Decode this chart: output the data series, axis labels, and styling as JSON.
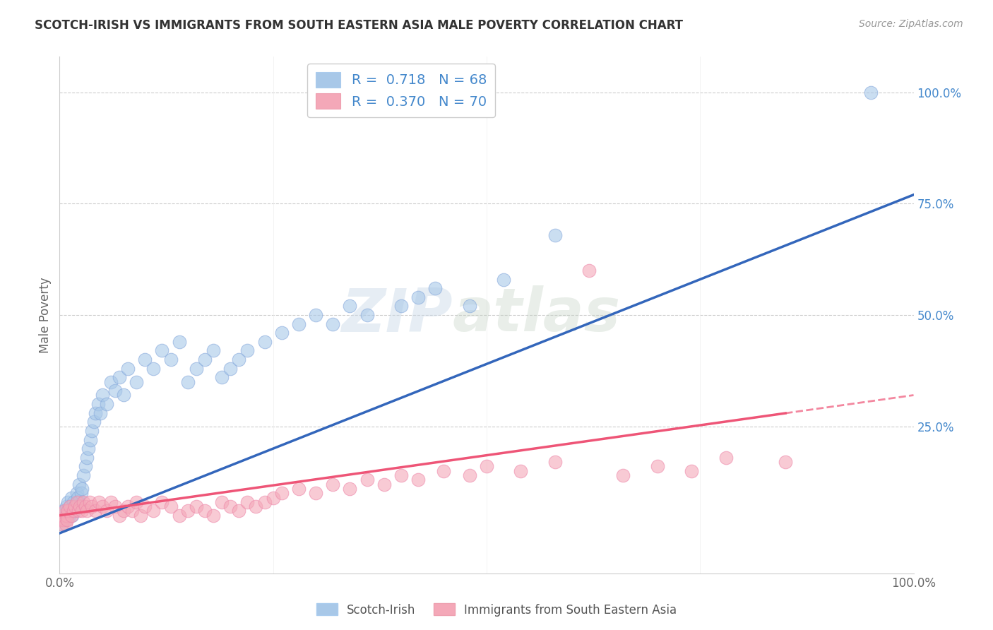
{
  "title": "SCOTCH-IRISH VS IMMIGRANTS FROM SOUTH EASTERN ASIA MALE POVERTY CORRELATION CHART",
  "source": "Source: ZipAtlas.com",
  "ylabel": "Male Poverty",
  "watermark": "ZIPatlas",
  "series1_label": "Scotch-Irish",
  "series2_label": "Immigrants from South Eastern Asia",
  "series1_R": 0.718,
  "series1_N": 68,
  "series2_R": 0.37,
  "series2_N": 70,
  "series1_color": "#a8c8e8",
  "series2_color": "#f4a8b8",
  "series1_line_color": "#3366bb",
  "series2_line_color": "#ee5577",
  "ytick_color": "#4488cc",
  "background_color": "#ffffff",
  "grid_color": "#cccccc",
  "xlim": [
    0,
    1
  ],
  "ylim": [
    -0.08,
    1.08
  ],
  "ytick_positions": [
    0.25,
    0.5,
    0.75,
    1.0
  ],
  "ytick_labels": [
    "25.0%",
    "50.0%",
    "75.0%",
    "100.0%"
  ],
  "series1_x": [
    0.002,
    0.003,
    0.004,
    0.005,
    0.006,
    0.007,
    0.008,
    0.009,
    0.01,
    0.011,
    0.012,
    0.013,
    0.014,
    0.015,
    0.016,
    0.017,
    0.018,
    0.02,
    0.021,
    0.022,
    0.023,
    0.025,
    0.026,
    0.028,
    0.03,
    0.032,
    0.034,
    0.036,
    0.038,
    0.04,
    0.042,
    0.045,
    0.048,
    0.05,
    0.055,
    0.06,
    0.065,
    0.07,
    0.075,
    0.08,
    0.09,
    0.1,
    0.11,
    0.12,
    0.13,
    0.14,
    0.15,
    0.16,
    0.17,
    0.18,
    0.19,
    0.2,
    0.21,
    0.22,
    0.24,
    0.26,
    0.28,
    0.3,
    0.32,
    0.34,
    0.36,
    0.4,
    0.42,
    0.44,
    0.48,
    0.52,
    0.58,
    0.95
  ],
  "series1_y": [
    0.03,
    0.05,
    0.04,
    0.06,
    0.05,
    0.04,
    0.07,
    0.06,
    0.08,
    0.05,
    0.07,
    0.06,
    0.09,
    0.05,
    0.08,
    0.07,
    0.06,
    0.1,
    0.09,
    0.08,
    0.12,
    0.1,
    0.11,
    0.14,
    0.16,
    0.18,
    0.2,
    0.22,
    0.24,
    0.26,
    0.28,
    0.3,
    0.28,
    0.32,
    0.3,
    0.35,
    0.33,
    0.36,
    0.32,
    0.38,
    0.35,
    0.4,
    0.38,
    0.42,
    0.4,
    0.44,
    0.35,
    0.38,
    0.4,
    0.42,
    0.36,
    0.38,
    0.4,
    0.42,
    0.44,
    0.46,
    0.48,
    0.5,
    0.48,
    0.52,
    0.5,
    0.52,
    0.54,
    0.56,
    0.52,
    0.58,
    0.68,
    1.0
  ],
  "series2_x": [
    0.002,
    0.003,
    0.004,
    0.005,
    0.006,
    0.007,
    0.008,
    0.009,
    0.01,
    0.012,
    0.014,
    0.016,
    0.018,
    0.02,
    0.022,
    0.024,
    0.026,
    0.028,
    0.03,
    0.032,
    0.035,
    0.038,
    0.042,
    0.046,
    0.05,
    0.055,
    0.06,
    0.065,
    0.07,
    0.075,
    0.08,
    0.085,
    0.09,
    0.095,
    0.1,
    0.11,
    0.12,
    0.13,
    0.14,
    0.15,
    0.16,
    0.17,
    0.18,
    0.19,
    0.2,
    0.21,
    0.22,
    0.23,
    0.24,
    0.25,
    0.26,
    0.28,
    0.3,
    0.32,
    0.34,
    0.36,
    0.38,
    0.4,
    0.42,
    0.45,
    0.48,
    0.5,
    0.54,
    0.58,
    0.62,
    0.66,
    0.7,
    0.74,
    0.78,
    0.85
  ],
  "series2_y": [
    0.04,
    0.03,
    0.05,
    0.04,
    0.06,
    0.03,
    0.05,
    0.04,
    0.06,
    0.07,
    0.05,
    0.06,
    0.07,
    0.08,
    0.06,
    0.07,
    0.06,
    0.08,
    0.07,
    0.06,
    0.08,
    0.07,
    0.06,
    0.08,
    0.07,
    0.06,
    0.08,
    0.07,
    0.05,
    0.06,
    0.07,
    0.06,
    0.08,
    0.05,
    0.07,
    0.06,
    0.08,
    0.07,
    0.05,
    0.06,
    0.07,
    0.06,
    0.05,
    0.08,
    0.07,
    0.06,
    0.08,
    0.07,
    0.08,
    0.09,
    0.1,
    0.11,
    0.1,
    0.12,
    0.11,
    0.13,
    0.12,
    0.14,
    0.13,
    0.15,
    0.14,
    0.16,
    0.15,
    0.17,
    0.6,
    0.14,
    0.16,
    0.15,
    0.18,
    0.17
  ],
  "line1_x_start": 0.0,
  "line1_y_start": 0.01,
  "line1_x_end": 1.0,
  "line1_y_end": 0.77,
  "line2_x_start": 0.0,
  "line2_y_start": 0.05,
  "line2_x_end": 1.0,
  "line2_y_end": 0.32,
  "line2_solid_end": 0.85
}
